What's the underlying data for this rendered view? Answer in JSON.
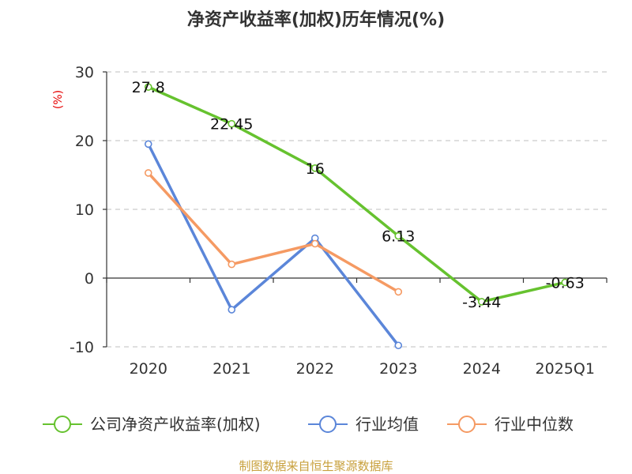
{
  "chart_data": {
    "type": "line",
    "title": "净资产收益率(加权)历年情况(%)",
    "ylabel": "(%)",
    "xlabel": "",
    "categories": [
      "2020",
      "2021",
      "2022",
      "2023",
      "2024",
      "2025Q1"
    ],
    "ylim": [
      -10,
      30
    ],
    "yticks": [
      -10,
      0,
      10,
      20,
      30
    ],
    "grid": true,
    "legend_position": "bottom",
    "series": [
      {
        "name": "公司净资产收益率(加权)",
        "color": "#66c22f",
        "values": [
          27.8,
          22.45,
          16,
          6.13,
          -3.44,
          -0.63
        ],
        "labels": [
          "27.8",
          "22.45",
          "16",
          "6.13",
          "-3.44",
          "-0.63"
        ]
      },
      {
        "name": "行业均值",
        "color": "#5b86d9",
        "values": [
          19.5,
          -4.6,
          5.8,
          -9.8,
          null,
          null
        ]
      },
      {
        "name": "行业中位数",
        "color": "#f59a63",
        "values": [
          15.3,
          2.0,
          5.0,
          -2.0,
          null,
          null
        ]
      }
    ]
  },
  "source": {
    "text": "制图数据来自恒生聚源数据库",
    "color": "#c8a03c"
  }
}
